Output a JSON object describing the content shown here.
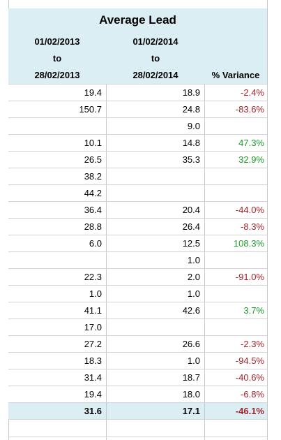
{
  "title": "Average Lead",
  "columns": {
    "period_a": {
      "from": "01/02/2013",
      "to_word": "to",
      "to": "28/02/2013"
    },
    "period_b": {
      "from": "01/02/2014",
      "to_word": "to",
      "to": "28/02/2014"
    },
    "variance": "% Variance"
  },
  "rows": [
    {
      "a": "19.4",
      "b": "18.9",
      "v": "-2.4%",
      "tone": "neg"
    },
    {
      "a": "150.7",
      "b": "24.8",
      "v": "-83.6%",
      "tone": "neg"
    },
    {
      "a": "",
      "b": "9.0",
      "v": "",
      "tone": ""
    },
    {
      "a": "10.1",
      "b": "14.8",
      "v": "47.3%",
      "tone": "pos"
    },
    {
      "a": "26.5",
      "b": "35.3",
      "v": "32.9%",
      "tone": "pos"
    },
    {
      "a": "38.2",
      "b": "",
      "v": "",
      "tone": ""
    },
    {
      "a": "44.2",
      "b": "",
      "v": "",
      "tone": ""
    },
    {
      "a": "36.4",
      "b": "20.4",
      "v": "-44.0%",
      "tone": "neg"
    },
    {
      "a": "28.8",
      "b": "26.4",
      "v": "-8.3%",
      "tone": "neg"
    },
    {
      "a": "6.0",
      "b": "12.5",
      "v": "108.3%",
      "tone": "pos"
    },
    {
      "a": "",
      "b": "1.0",
      "v": "",
      "tone": ""
    },
    {
      "a": "22.3",
      "b": "2.0",
      "v": "-91.0%",
      "tone": "neg"
    },
    {
      "a": "1.0",
      "b": "1.0",
      "v": "",
      "tone": ""
    },
    {
      "a": "41.1",
      "b": "42.6",
      "v": "3.7%",
      "tone": "pos"
    },
    {
      "a": "17.0",
      "b": "",
      "v": "",
      "tone": ""
    },
    {
      "a": "27.2",
      "b": "26.6",
      "v": "-2.3%",
      "tone": "neg"
    },
    {
      "a": "18.3",
      "b": "1.0",
      "v": "-94.5%",
      "tone": "neg"
    },
    {
      "a": "31.4",
      "b": "18.7",
      "v": "-40.6%",
      "tone": "neg"
    },
    {
      "a": "19.4",
      "b": "18.0",
      "v": "-6.8%",
      "tone": "neg"
    }
  ],
  "total": {
    "a": "31.6",
    "b": "17.1",
    "v": "-46.1%",
    "tone": "neg"
  },
  "colors": {
    "header_fill": "#dbeef4",
    "negative": "#a0232b",
    "positive": "#1f9a2a",
    "gridline": "#d4d4d4"
  }
}
